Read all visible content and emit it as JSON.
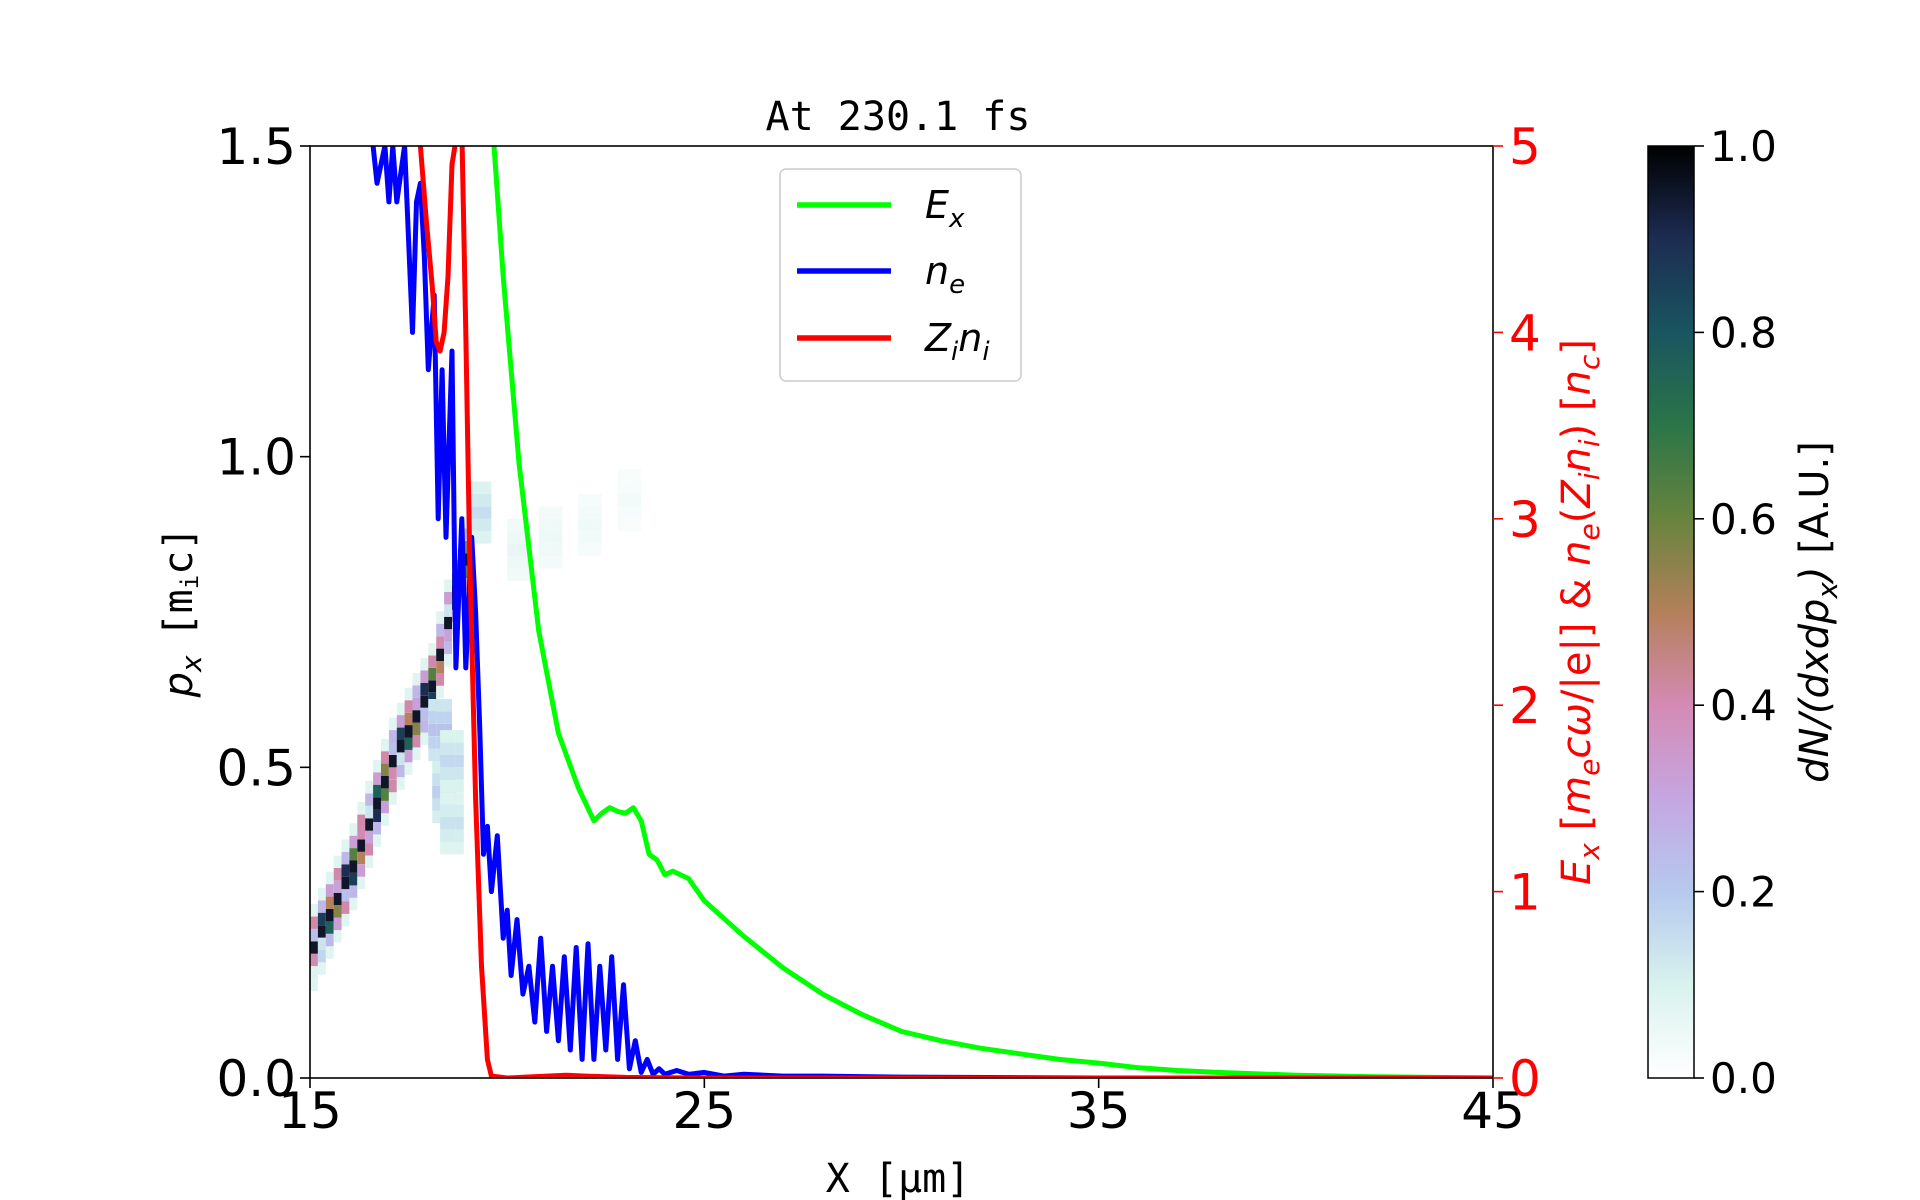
{
  "chart_data": {
    "type": "line",
    "title": "At 230.1 fs",
    "xlabel": "X [μm]",
    "ylabel_left": "p",
    "ylabel_left_sub": "x",
    "ylabel_left_unit": "[m",
    "ylabel_left_unit_sub": "i",
    "ylabel_left_unit_tail": "c]",
    "ylabel_right_parts": [
      {
        "t": "E",
        "style": "italic",
        "pos": "base"
      },
      {
        "t": "x",
        "style": "italic",
        "pos": "sub"
      },
      {
        "t": "  [",
        "style": "normal",
        "pos": "base"
      },
      {
        "t": "m",
        "style": "italic",
        "pos": "base"
      },
      {
        "t": "e",
        "style": "italic",
        "pos": "sub"
      },
      {
        "t": "cω",
        "style": "italic",
        "pos": "base"
      },
      {
        "t": "/|e|]  &  ",
        "style": "normal",
        "pos": "base"
      },
      {
        "t": "n",
        "style": "italic",
        "pos": "base"
      },
      {
        "t": "e",
        "style": "italic",
        "pos": "sub"
      },
      {
        "t": "(",
        "style": "normal",
        "pos": "base"
      },
      {
        "t": "Z",
        "style": "italic",
        "pos": "base"
      },
      {
        "t": "i",
        "style": "italic",
        "pos": "sub"
      },
      {
        "t": "n",
        "style": "italic",
        "pos": "base"
      },
      {
        "t": "i",
        "style": "italic",
        "pos": "sub"
      },
      {
        "t": ")  [",
        "style": "normal",
        "pos": "base"
      },
      {
        "t": "n",
        "style": "italic",
        "pos": "base"
      },
      {
        "t": "c",
        "style": "italic",
        "pos": "sub"
      },
      {
        "t": "]",
        "style": "normal",
        "pos": "base"
      }
    ],
    "colorbar_label_parts": [
      {
        "t": "dN/(dxdp",
        "style": "italic",
        "pos": "base"
      },
      {
        "t": "x",
        "style": "italic",
        "pos": "sub"
      },
      {
        "t": ")",
        "style": "italic",
        "pos": "base"
      },
      {
        "t": "  [A.U.]",
        "style": "normal",
        "pos": "base"
      }
    ],
    "xlim": [
      15,
      45
    ],
    "ylim_left": [
      0,
      1.5
    ],
    "ylim_right": [
      0,
      5
    ],
    "clim": [
      0,
      1
    ],
    "x_ticks": [
      15,
      25,
      35,
      45
    ],
    "y_left_ticks": [
      "0.0",
      "0.5",
      "1.0",
      "1.5"
    ],
    "y_right_ticks": [
      "0",
      "1",
      "2",
      "3",
      "4",
      "5"
    ],
    "colorbar_ticks": [
      "0.0",
      "0.2",
      "0.4",
      "0.6",
      "0.8",
      "1.0"
    ],
    "right_axis_color": "#ff0000",
    "colormap": "cubehelix_r",
    "legend_position": "upper center",
    "grid": false,
    "series": [
      {
        "name": "E",
        "name_sub": "x",
        "color": "#00ff00",
        "axis": "right",
        "x": [
          19.6,
          19.9,
          20.3,
          20.8,
          21.3,
          21.8,
          22.2,
          22.4,
          22.6,
          22.8,
          23.0,
          23.2,
          23.4,
          23.6,
          23.8,
          24.0,
          24.2,
          24.6,
          25.0,
          26.0,
          27.0,
          28.0,
          29.0,
          30.0,
          31.0,
          32.0,
          33.0,
          34.0,
          35.0,
          36.0,
          37.0,
          38.0,
          40.0,
          42.0,
          45.0
        ],
        "y": [
          5.2,
          4.3,
          3.3,
          2.4,
          1.85,
          1.56,
          1.38,
          1.42,
          1.45,
          1.43,
          1.42,
          1.45,
          1.38,
          1.2,
          1.17,
          1.09,
          1.11,
          1.07,
          0.95,
          0.76,
          0.59,
          0.45,
          0.34,
          0.25,
          0.2,
          0.16,
          0.13,
          0.1,
          0.08,
          0.055,
          0.04,
          0.03,
          0.015,
          0.007,
          0.0
        ]
      },
      {
        "name": "n",
        "name_sub": "e",
        "color": "#0000ff",
        "axis": "right",
        "x": [
          16.6,
          16.7,
          16.9,
          17.0,
          17.1,
          17.2,
          17.4,
          17.6,
          17.7,
          17.8,
          17.9,
          18.0,
          18.15,
          18.25,
          18.35,
          18.45,
          18.6,
          18.7,
          18.85,
          18.95,
          19.1,
          19.2,
          19.3,
          19.4,
          19.5,
          19.6,
          19.75,
          19.9,
          20.0,
          20.1,
          20.25,
          20.4,
          20.55,
          20.7,
          20.85,
          21.0,
          21.15,
          21.3,
          21.45,
          21.6,
          21.75,
          21.9,
          22.05,
          22.2,
          22.35,
          22.5,
          22.65,
          22.8,
          22.95,
          23.1,
          23.25,
          23.4,
          23.55,
          23.7,
          23.85,
          24.0,
          24.3,
          24.6,
          25.0,
          25.5,
          26.0,
          27.0,
          28.0,
          30.0,
          35.0,
          40.0,
          45.0
        ],
        "y": [
          5.0,
          4.8,
          5.0,
          4.7,
          5.0,
          4.7,
          5.0,
          4.0,
          4.7,
          4.8,
          4.4,
          3.8,
          4.2,
          3.0,
          3.8,
          2.9,
          3.9,
          2.2,
          3.0,
          2.2,
          2.9,
          2.5,
          1.9,
          1.2,
          1.35,
          1.0,
          1.3,
          0.75,
          0.9,
          0.55,
          0.85,
          0.45,
          0.6,
          0.3,
          0.75,
          0.25,
          0.6,
          0.2,
          0.65,
          0.15,
          0.7,
          0.1,
          0.72,
          0.1,
          0.6,
          0.15,
          0.65,
          0.1,
          0.5,
          0.05,
          0.2,
          0.03,
          0.1,
          0.02,
          0.05,
          0.02,
          0.04,
          0.02,
          0.03,
          0.01,
          0.02,
          0.01,
          0.01,
          0.005,
          0.0,
          0.0,
          0.0
        ]
      },
      {
        "name": "Z",
        "name_sub": "i",
        "name_tail": "n",
        "name_tail_sub": "i",
        "color": "#ff0000",
        "axis": "right",
        "x": [
          17.8,
          17.95,
          18.1,
          18.2,
          18.3,
          18.4,
          18.5,
          18.6,
          18.75,
          18.85,
          18.95,
          19.05,
          19.2,
          19.35,
          19.5,
          19.6,
          20.0,
          21.0,
          21.5,
          22.0,
          23.0,
          25.0,
          30.0,
          45.0
        ],
        "y": [
          5.0,
          4.6,
          4.25,
          3.95,
          3.9,
          4.0,
          4.3,
          4.9,
          5.1,
          5.1,
          4.0,
          2.8,
          1.5,
          0.6,
          0.1,
          0.01,
          0.0,
          0.01,
          0.015,
          0.01,
          0.003,
          0.0,
          0.0,
          0.0
        ]
      }
    ],
    "phase_space": {
      "band": [
        {
          "x": 15.0,
          "y": 0.2
        },
        {
          "x": 16.0,
          "y": 0.33
        },
        {
          "x": 17.0,
          "y": 0.5
        },
        {
          "x": 18.0,
          "y": 0.62
        },
        {
          "x": 18.9,
          "y": 0.85
        }
      ],
      "halo": [
        {
          "x": 18.2,
          "y": 0.55,
          "v": 0.22
        },
        {
          "x": 18.3,
          "y": 0.45,
          "v": 0.18
        },
        {
          "x": 18.5,
          "y": 0.5,
          "v": 0.16
        },
        {
          "x": 18.5,
          "y": 0.4,
          "v": 0.14
        },
        {
          "x": 19.2,
          "y": 0.9,
          "v": 0.15
        },
        {
          "x": 20.2,
          "y": 0.84,
          "v": 0.06
        },
        {
          "x": 21.0,
          "y": 0.86,
          "v": 0.05
        },
        {
          "x": 22.0,
          "y": 0.88,
          "v": 0.04
        },
        {
          "x": 23.0,
          "y": 0.92,
          "v": 0.03
        }
      ]
    }
  }
}
